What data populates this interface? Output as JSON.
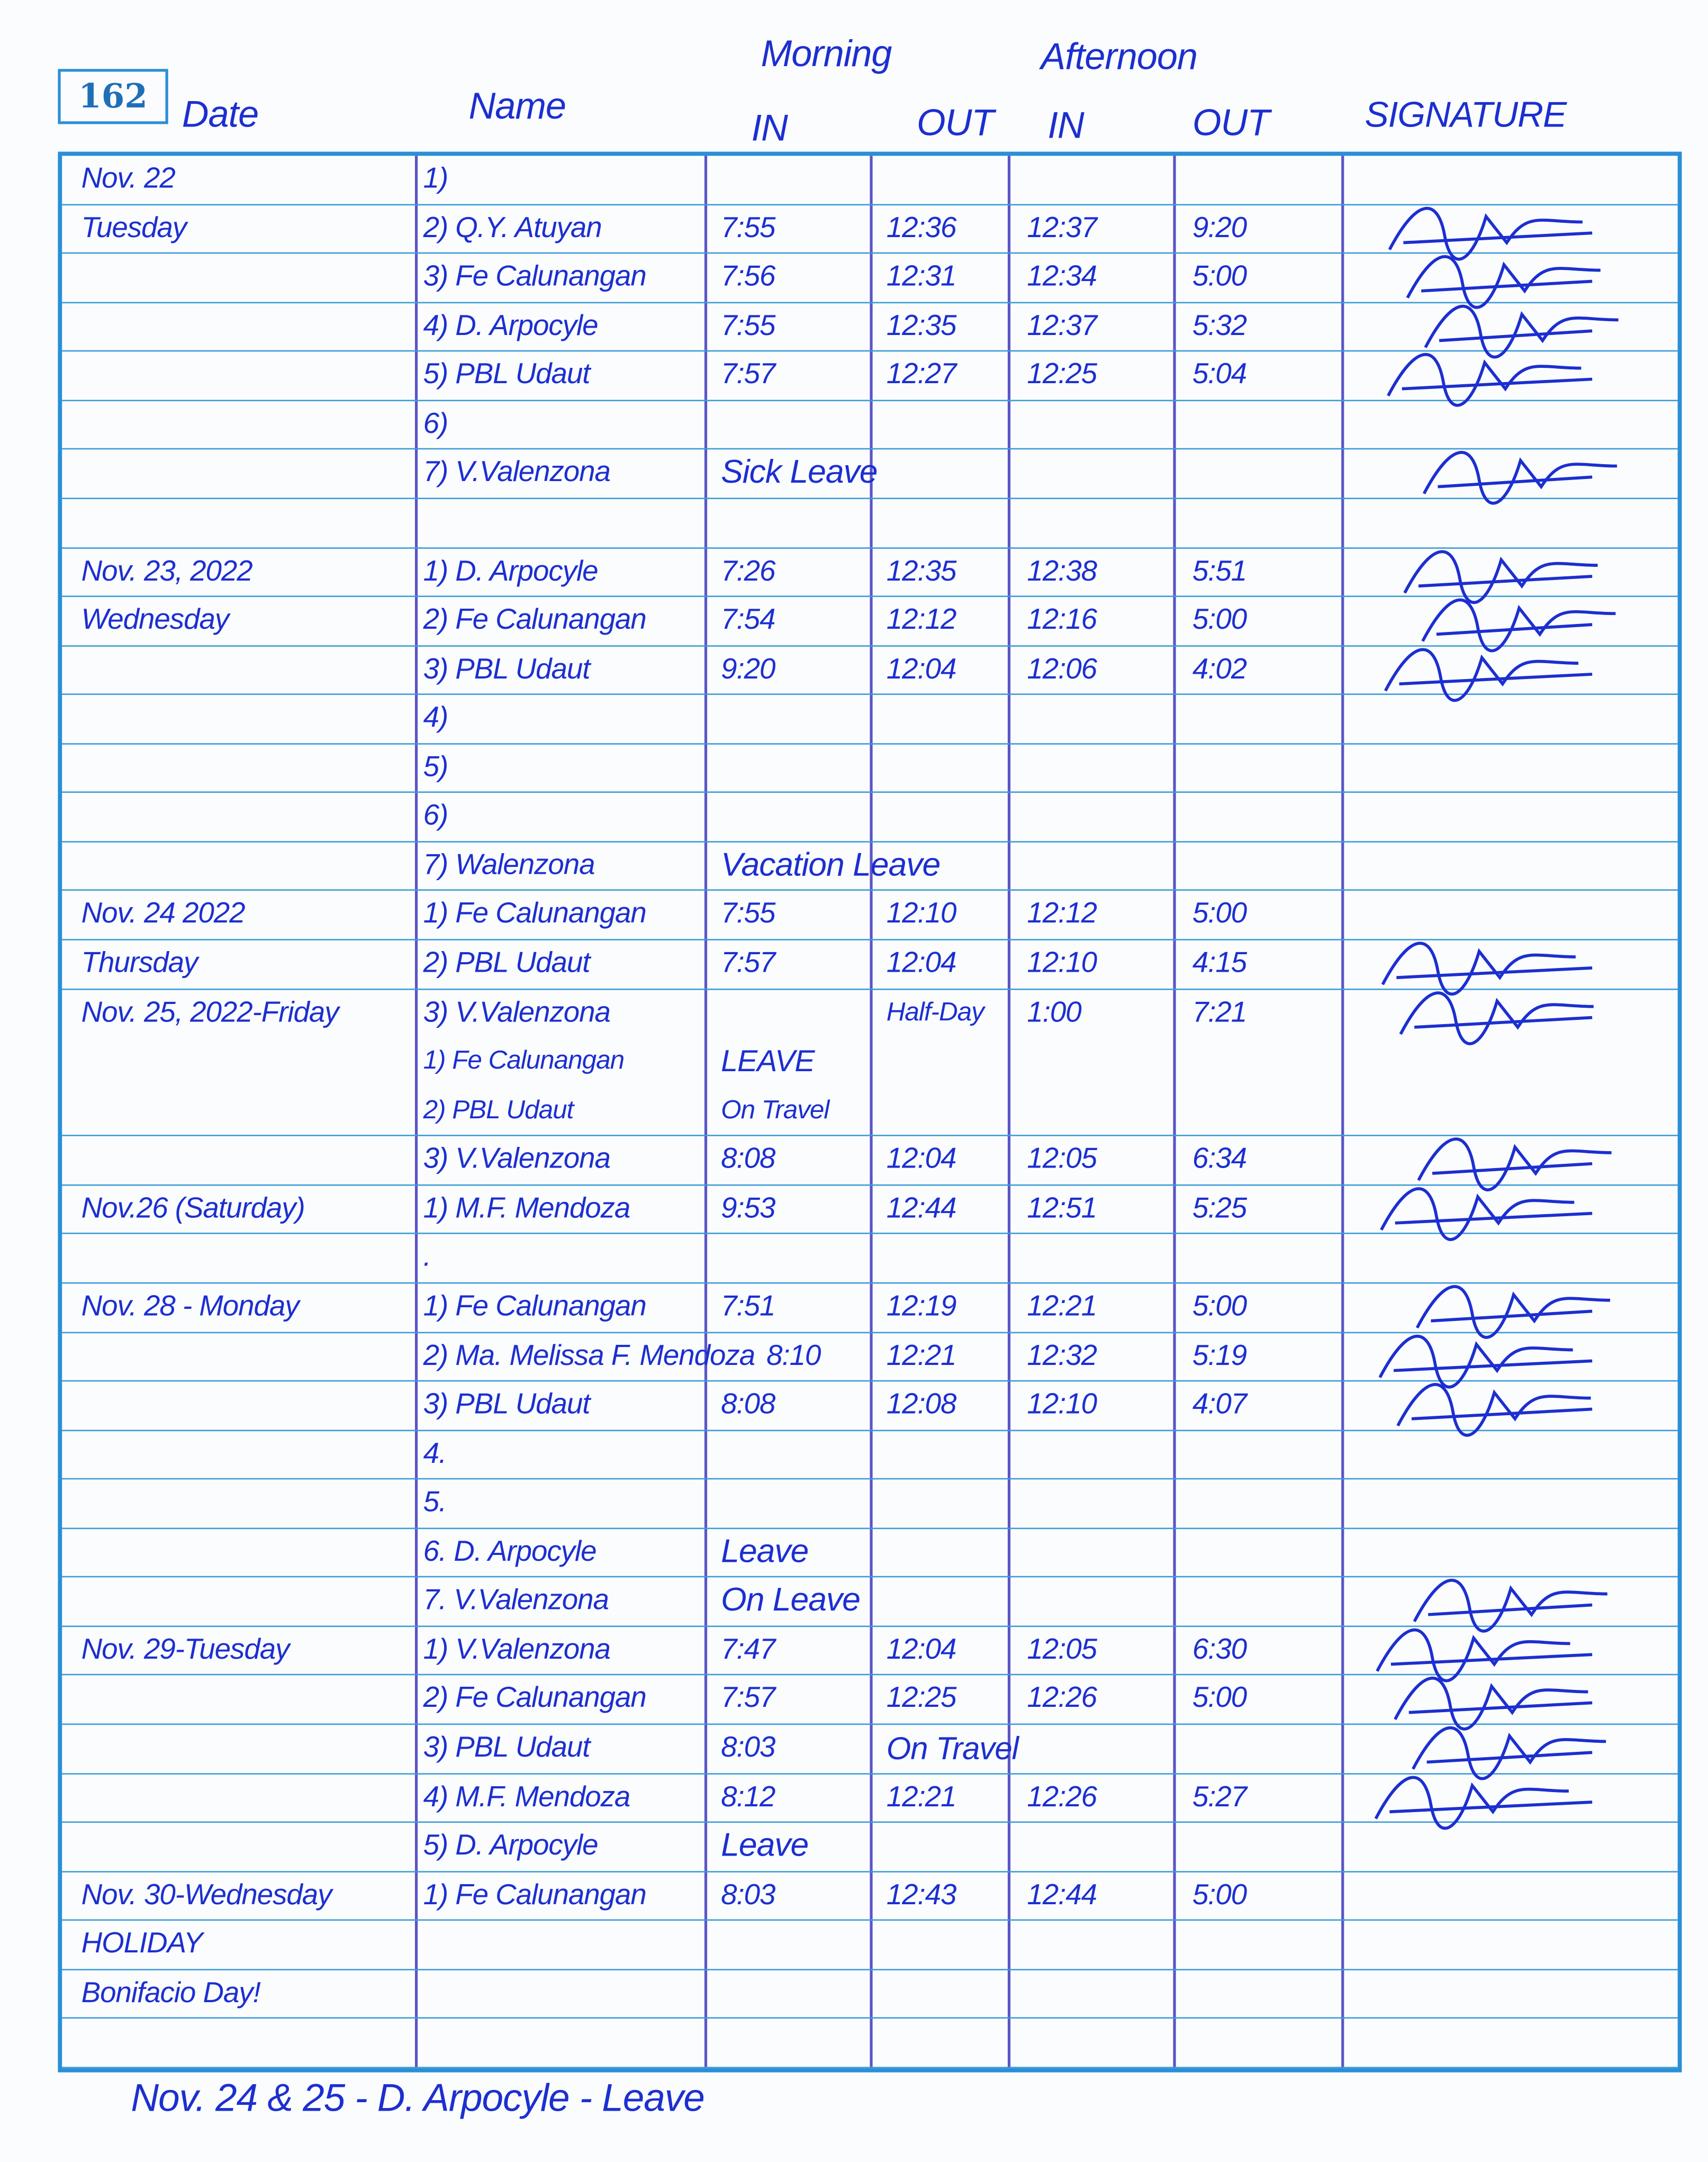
{
  "page_number": "162",
  "header": {
    "date": "Date",
    "name": "Name",
    "morning": "Morning",
    "afternoon": "Afternoon",
    "am_in": "IN",
    "am_out": "OUT",
    "pm_in": "IN",
    "pm_out": "OUT",
    "signature": "SIGNATURE"
  },
  "ink_color": "#1c2fd0",
  "rule_color": "#3c9bd8",
  "rows": [
    {
      "date": "Nov. 22",
      "name": "1)"
    },
    {
      "date": "Tuesday",
      "name": "2) Q.Y. Atuyan",
      "am_in": "7:55",
      "am_out": "12:36",
      "pm_in": "12:37",
      "pm_out": "9:20",
      "signed": true
    },
    {
      "name": "3) Fe Calunangan",
      "am_in": "7:56",
      "am_out": "12:31",
      "pm_in": "12:34",
      "pm_out": "5:00",
      "signed": true
    },
    {
      "name": "4) D. Arpocyle",
      "am_in": "7:55",
      "am_out": "12:35",
      "pm_in": "12:37",
      "pm_out": "5:32",
      "signed": true
    },
    {
      "name": "5) PBL Udaut",
      "am_in": "7:57",
      "am_out": "12:27",
      "pm_in": "12:25",
      "pm_out": "5:04",
      "signed": true
    },
    {
      "name": "6)"
    },
    {
      "name": "7) V.Valenzona",
      "note": "Sick Leave",
      "signed": true
    },
    {},
    {
      "date": "Nov. 23, 2022",
      "name": "1) D. Arpocyle",
      "am_in": "7:26",
      "am_out": "12:35",
      "pm_in": "12:38",
      "pm_out": "5:51",
      "signed": true
    },
    {
      "date": "Wednesday",
      "name": "2) Fe Calunangan",
      "am_in": "7:54",
      "am_out": "12:12",
      "pm_in": "12:16",
      "pm_out": "5:00",
      "signed": true
    },
    {
      "name": "3) PBL Udaut",
      "am_in": "9:20",
      "am_out": "12:04",
      "pm_in": "12:06",
      "pm_out": "4:02",
      "signed": true
    },
    {
      "name": "4)"
    },
    {
      "name": "5)"
    },
    {
      "name": "6)"
    },
    {
      "name": "7) Walenzona",
      "note": "Vacation Leave"
    },
    {
      "date": "Nov. 24 2022",
      "name": "1) Fe Calunangan",
      "am_in": "7:55",
      "am_out": "12:10",
      "pm_in": "12:12",
      "pm_out": "5:00"
    },
    {
      "date": "Thursday",
      "name": "2) PBL Udaut",
      "am_in": "7:57",
      "am_out": "12:04",
      "pm_in": "12:10",
      "pm_out": "4:15",
      "signed": true
    },
    {
      "date": "Nov. 25, 2022-Friday",
      "name": "3) V.Valenzona",
      "note": "Half-Day",
      "pm_in": "1:00",
      "pm_out": "7:21",
      "signed": true,
      "extra": [
        {
          "name": "1) Fe Calunangan",
          "note": "LEAVE"
        },
        {
          "name": "2) PBL Udaut",
          "note": "On Travel"
        }
      ]
    },
    {
      "name": "3) V.Valenzona",
      "am_in": "8:08",
      "am_out": "12:04",
      "pm_in": "12:05",
      "pm_out": "6:34",
      "signed": true
    },
    {
      "date": "Nov.26 (Saturday)",
      "name": "1) M.F. Mendoza",
      "am_in": "9:53",
      "am_out": "12:44",
      "pm_in": "12:51",
      "pm_out": "5:25",
      "signed": true
    },
    {
      "name": "."
    },
    {
      "date": "Nov. 28 - Monday",
      "name": "1) Fe Calunangan",
      "am_in": "7:51",
      "am_out": "12:19",
      "pm_in": "12:21",
      "pm_out": "5:00",
      "signed": true
    },
    {
      "name": "2) Ma. Melissa F. Mendoza",
      "am_in": "8:10",
      "am_out": "12:21",
      "pm_in": "12:32",
      "pm_out": "5:19",
      "signed": true
    },
    {
      "name": "3) PBL Udaut",
      "am_in": "8:08",
      "am_out": "12:08",
      "pm_in": "12:10",
      "pm_out": "4:07",
      "signed": true
    },
    {
      "name": "4."
    },
    {
      "name": "5."
    },
    {
      "name": "6. D. Arpocyle",
      "note": "Leave"
    },
    {
      "name": "7. V.Valenzona",
      "note": "On Leave",
      "signed": true
    },
    {
      "date": "Nov. 29-Tuesday",
      "name": "1) V.Valenzona",
      "am_in": "7:47",
      "am_out": "12:04",
      "pm_in": "12:05",
      "pm_out": "6:30",
      "signed": true
    },
    {
      "name": "2) Fe Calunangan",
      "am_in": "7:57",
      "am_out": "12:25",
      "pm_in": "12:26",
      "pm_out": "5:00",
      "signed": true
    },
    {
      "name": "3) PBL Udaut",
      "am_in": "8:03",
      "note2": "On Travel",
      "signed": true
    },
    {
      "name": "4) M.F. Mendoza",
      "am_in": "8:12",
      "am_out": "12:21",
      "pm_in": "12:26",
      "pm_out": "5:27",
      "signed": true
    },
    {
      "name": "5) D. Arpocyle",
      "note": "Leave"
    },
    {
      "date": "Nov. 30-Wednesday",
      "name": "1) Fe Calunangan",
      "am_in": "8:03",
      "am_out": "12:43",
      "pm_in": "12:44",
      "pm_out": "5:00"
    },
    {
      "date": "HOLIDAY"
    },
    {
      "date": "Bonifacio Day!"
    },
    {}
  ],
  "footer_note": "Nov. 24 & 25 - D. Arpocyle - Leave"
}
